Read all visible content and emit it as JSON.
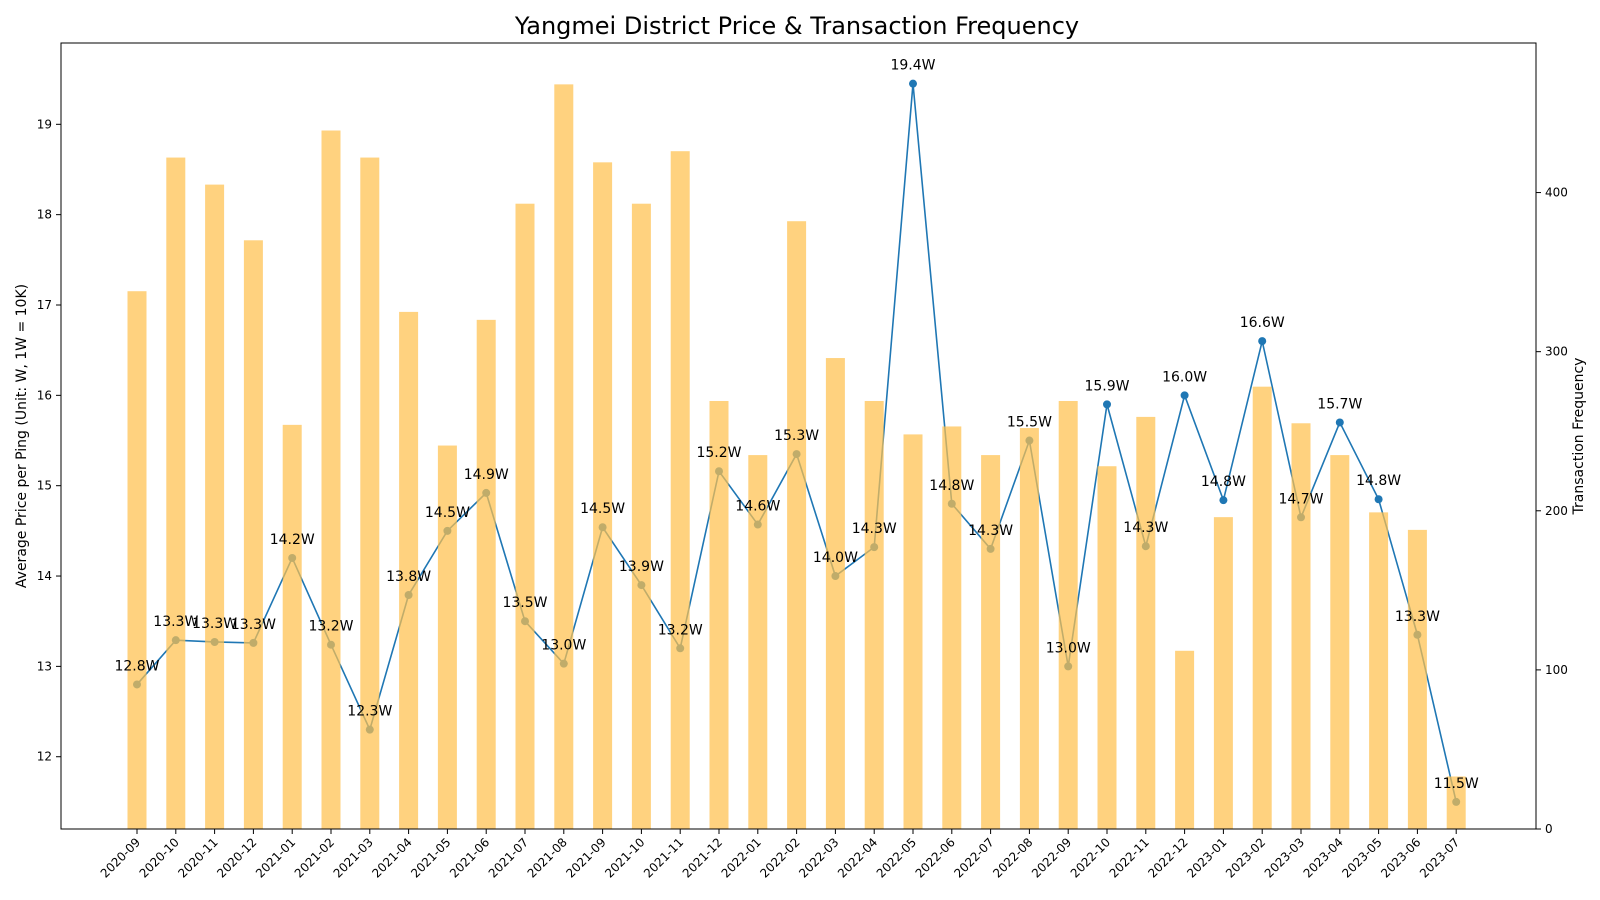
{
  "chart_data": {
    "type": "bar+line",
    "title": "Yangmei District Price & Transaction Frequency",
    "ylabel_left": "Average Price per Ping (Unit: W, 1W = 10K)",
    "ylabel_right": "Transaction Frequency",
    "xlabel": "",
    "categories": [
      "2020-09",
      "2020-10",
      "2020-11",
      "2020-12",
      "2021-01",
      "2021-02",
      "2021-03",
      "2021-04",
      "2021-05",
      "2021-06",
      "2021-07",
      "2021-08",
      "2021-09",
      "2021-10",
      "2021-11",
      "2021-12",
      "2022-01",
      "2022-02",
      "2022-03",
      "2022-04",
      "2022-05",
      "2022-06",
      "2022-07",
      "2022-08",
      "2022-09",
      "2022-10",
      "2022-11",
      "2022-12",
      "2023-01",
      "2023-02",
      "2023-03",
      "2023-04",
      "2023-05",
      "2023-06",
      "2023-07"
    ],
    "series": [
      {
        "kind": "line",
        "axis": "left",
        "color": "#1f77b4",
        "values": [
          12.8,
          13.29,
          13.27,
          13.26,
          14.2,
          13.24,
          12.3,
          13.79,
          14.5,
          14.92,
          13.5,
          13.03,
          14.54,
          13.9,
          13.2,
          15.16,
          14.57,
          15.35,
          14.0,
          14.32,
          19.45,
          14.8,
          14.3,
          15.5,
          13.0,
          15.9,
          14.33,
          16.0,
          14.84,
          16.6,
          14.65,
          15.7,
          14.85,
          13.35,
          11.5
        ],
        "data_labels": [
          "12.8W",
          "13.3W",
          "13.3W",
          "13.3W",
          "14.2W",
          "13.2W",
          "12.3W",
          "13.8W",
          "14.5W",
          "14.9W",
          "13.5W",
          "13.0W",
          "14.5W",
          "13.9W",
          "13.2W",
          "15.2W",
          "14.6W",
          "15.3W",
          "14.0W",
          "14.3W",
          "19.4W",
          "14.8W",
          "14.3W",
          "15.5W",
          "13.0W",
          "15.9W",
          "14.3W",
          "16.0W",
          "14.8W",
          "16.6W",
          "14.7W",
          "15.7W",
          "14.8W",
          "13.3W",
          "11.5W"
        ]
      },
      {
        "kind": "bar",
        "axis": "right",
        "color": "#ffc04d",
        "opacity": 0.72,
        "values": [
          338,
          422,
          405,
          370,
          254,
          439,
          422,
          325,
          241,
          320,
          393,
          468,
          419,
          393,
          426,
          269,
          235,
          382,
          296,
          269,
          248,
          253,
          235,
          252,
          269,
          228,
          259,
          112,
          196,
          278,
          255,
          235,
          199,
          188,
          33
        ]
      }
    ],
    "ylim_left": [
      11.2,
      19.9
    ],
    "yticks_left": [
      12,
      13,
      14,
      15,
      16,
      17,
      18,
      19
    ],
    "ylim_right": [
      0,
      494
    ],
    "yticks_right": [
      0,
      100,
      200,
      300,
      400
    ],
    "grid": false,
    "legend": "none"
  }
}
